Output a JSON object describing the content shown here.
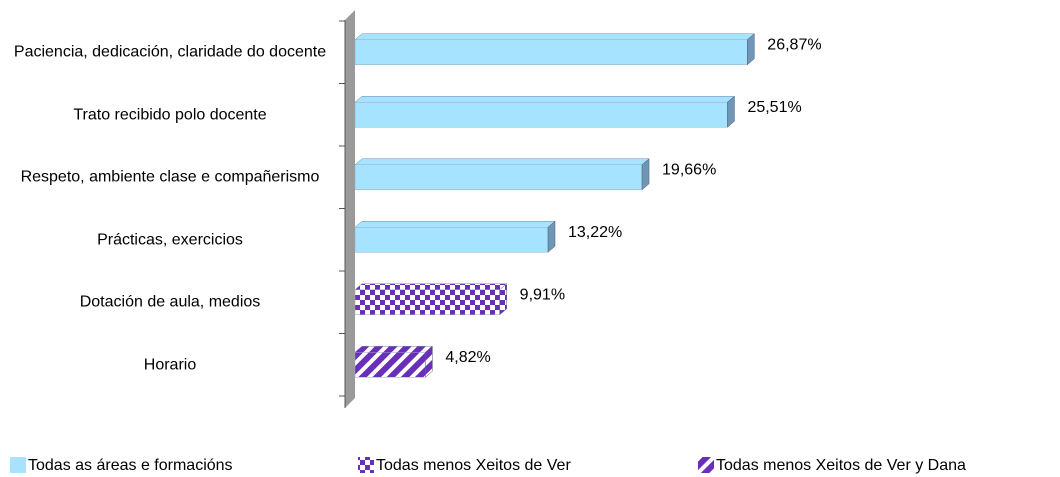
{
  "chart_data": {
    "type": "bar",
    "orientation": "horizontal",
    "categories": [
      "Paciencia, dedicación, claridade do docente",
      "Trato recibido polo docente",
      "Respeto, ambiente clase e compañerismo",
      "Prácticas, exercicios",
      "Dotación de aula, medios",
      "Horario"
    ],
    "series": [
      {
        "name": "Todas as áreas e formacións",
        "color": "#a6e3ff",
        "pattern": "solid",
        "values": [
          26.87,
          25.51,
          19.66,
          13.22,
          null,
          null
        ],
        "value_labels": [
          "26,87%",
          "25,51%",
          "19,66%",
          "13,22%",
          null,
          null
        ]
      },
      {
        "name": "Todas menos Xeitos de Ver",
        "color": "#6a2fb8",
        "pattern": "checker",
        "values": [
          null,
          null,
          null,
          null,
          9.91,
          null
        ],
        "value_labels": [
          null,
          null,
          null,
          null,
          "9,91%",
          null
        ]
      },
      {
        "name": "Todas menos Xeitos de Ver y Dana",
        "color": "#6a2fb8",
        "pattern": "stripes",
        "values": [
          null,
          null,
          null,
          null,
          null,
          4.82
        ],
        "value_labels": [
          null,
          null,
          null,
          null,
          null,
          "4,82%"
        ]
      }
    ]
  }
}
